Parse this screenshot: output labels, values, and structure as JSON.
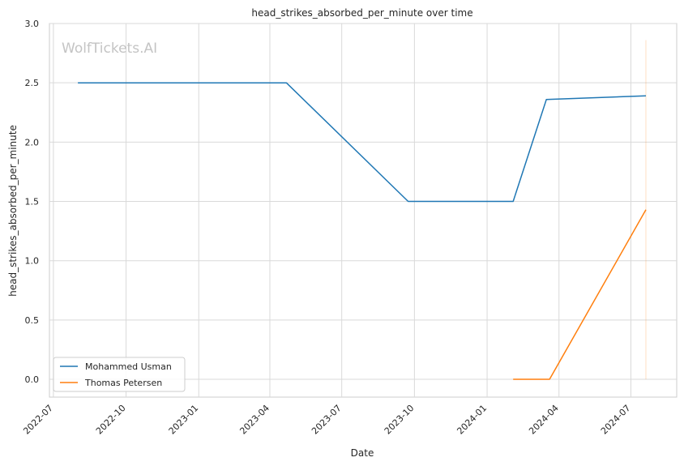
{
  "chart_data": {
    "type": "line",
    "title": "head_strikes_absorbed_per_minute over time",
    "xlabel": "Date",
    "ylabel": "head_strikes_absorbed_per_minute",
    "watermark": "WolfTickets.AI",
    "xlim": [
      "2022-06-26",
      "2024-08-28"
    ],
    "ylim": [
      -0.15,
      3.0
    ],
    "x_ticks": [
      "2022-07",
      "2022-10",
      "2023-01",
      "2023-04",
      "2023-07",
      "2023-10",
      "2024-01",
      "2024-04",
      "2024-07"
    ],
    "y_ticks": [
      "0.0",
      "0.5",
      "1.0",
      "1.5",
      "2.0",
      "2.5",
      "3.0"
    ],
    "grid": true,
    "legend_position": "lower-left",
    "series": [
      {
        "name": "Mohammed Usman",
        "color": "#1f77b4",
        "points": [
          {
            "x": "2022-08-01",
            "y": 2.5
          },
          {
            "x": "2023-04-22",
            "y": 2.5
          },
          {
            "x": "2023-09-23",
            "y": 1.5
          },
          {
            "x": "2024-02-03",
            "y": 1.5
          },
          {
            "x": "2024-03-16",
            "y": 2.36
          },
          {
            "x": "2024-07-20",
            "y": 2.39
          }
        ]
      },
      {
        "name": "Thomas Petersen",
        "color": "#ff7f0e",
        "points": [
          {
            "x": "2024-02-03",
            "y": 0.0
          },
          {
            "x": "2024-03-20",
            "y": 0.0
          },
          {
            "x": "2024-07-20",
            "y": 1.43
          }
        ]
      }
    ],
    "annotations": [
      {
        "type": "vline",
        "x": "2024-07-20",
        "y_from": 0.0,
        "y_to": 2.86,
        "color": "#ff7f0e"
      }
    ]
  }
}
